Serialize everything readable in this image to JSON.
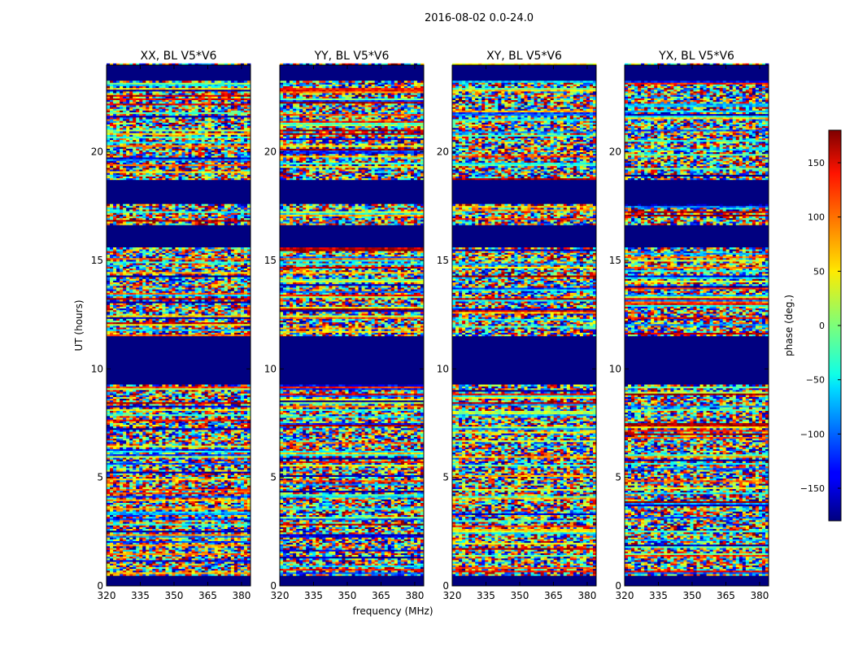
{
  "figure": {
    "suptitle": "2016-08-02 0.0-24.0",
    "xlabel": "frequency (MHz)",
    "ylabel": "UT (hours)"
  },
  "chart_data": {
    "type": "heatmap",
    "colormap": "jet",
    "xlim": [
      320,
      384
    ],
    "ylim": [
      0,
      24
    ],
    "xticks": [
      320,
      335,
      350,
      365,
      380
    ],
    "xtick_labels": [
      "320",
      "335",
      "350",
      "365",
      "380"
    ],
    "yticks": [
      0,
      5,
      10,
      15,
      20
    ],
    "ytick_labels": [
      "0",
      "5",
      "10",
      "15",
      "20"
    ],
    "panels": [
      {
        "title": "XX, BL V5*V6",
        "show_ylabel": true
      },
      {
        "title": "YY, BL V5*V6",
        "show_ylabel": false
      },
      {
        "title": "XY, BL V5*V6",
        "show_ylabel": false
      },
      {
        "title": "YX, BL V5*V6",
        "show_ylabel": false
      }
    ],
    "flagged_intervals_hours": [
      [
        0,
        0.5
      ],
      [
        9.3,
        11.5
      ],
      [
        15.6,
        16.6
      ],
      [
        17.6,
        18.7
      ],
      [
        23.3,
        24
      ]
    ],
    "flag_value_deg": -180,
    "colorbar": {
      "label": "phase (deg.)",
      "range": [
        -180,
        180
      ],
      "ticks": [
        150,
        100,
        50,
        0,
        -50,
        -100,
        -150
      ],
      "tick_labels": [
        "150",
        "100",
        "50",
        "0",
        "−50",
        "−100",
        "−150"
      ]
    }
  }
}
